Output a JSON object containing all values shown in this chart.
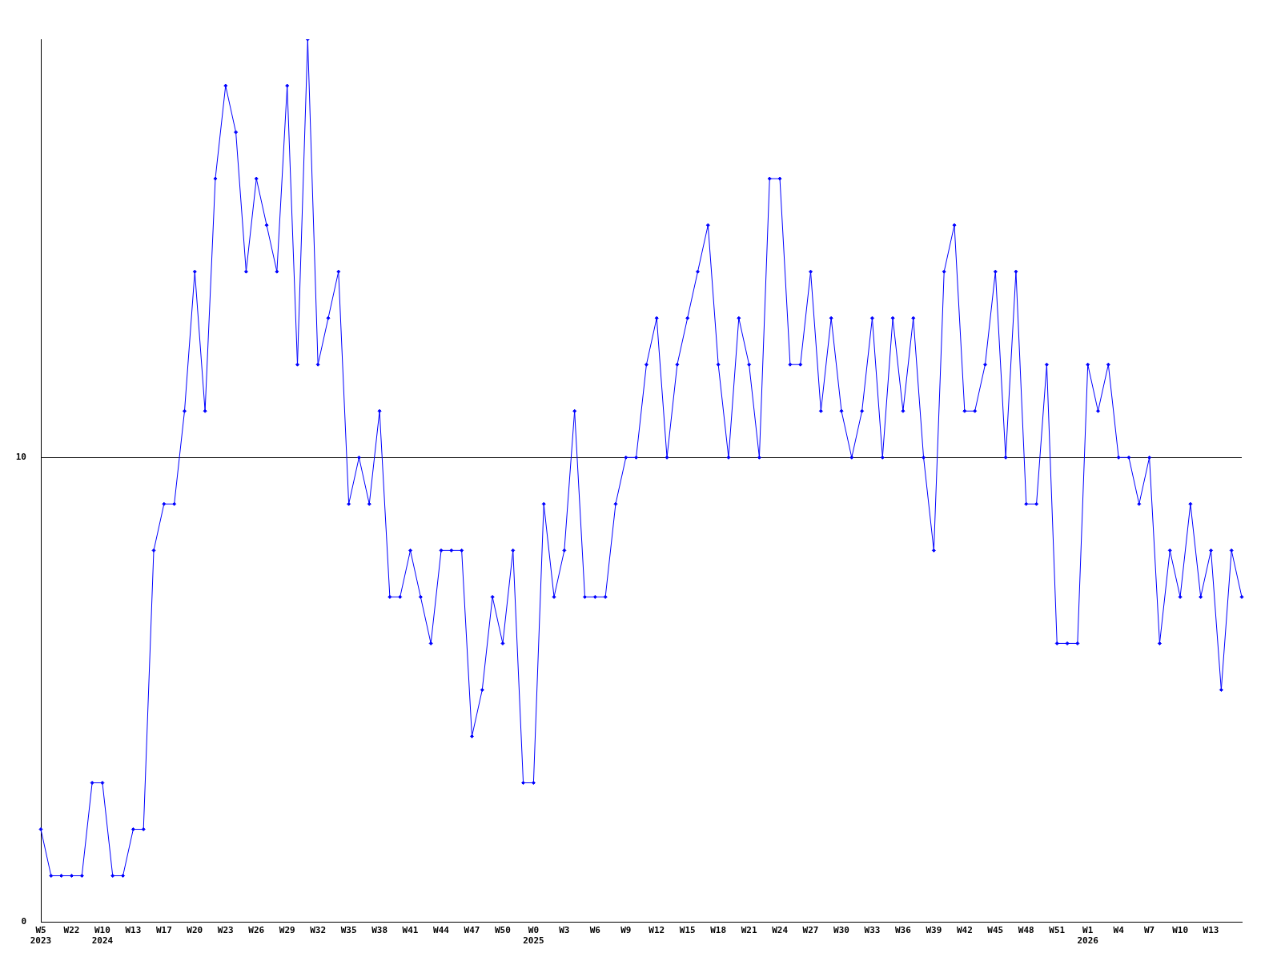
{
  "chart_data": {
    "type": "line",
    "categories": [
      "W5\n2023",
      null,
      null,
      "W22",
      null,
      null,
      "W10\n2024",
      null,
      null,
      "W13",
      null,
      null,
      "W17",
      null,
      null,
      "W20",
      null,
      null,
      "W23",
      null,
      null,
      "W26",
      null,
      null,
      "W29",
      null,
      null,
      "W32",
      null,
      null,
      "W35",
      null,
      null,
      "W38",
      null,
      null,
      "W41",
      null,
      null,
      "W44",
      null,
      null,
      "W47",
      null,
      null,
      "W50",
      null,
      null,
      "W0\n2025",
      null,
      null,
      "W3",
      null,
      null,
      "W6",
      null,
      null,
      "W9",
      null,
      null,
      "W12",
      null,
      null,
      "W15",
      null,
      null,
      "W18",
      null,
      null,
      "W21",
      null,
      null,
      "W24",
      null,
      null,
      "W27",
      null,
      null,
      "W30",
      null,
      null,
      "W33",
      null,
      null,
      "W36",
      null,
      null,
      "W39",
      null,
      null,
      "W42",
      null,
      null,
      "W45",
      null,
      null,
      "W48",
      null,
      null,
      "W51",
      null,
      null,
      "W1\n2026",
      null,
      null,
      "W4",
      null,
      null,
      "W7",
      null,
      null,
      "W10",
      null,
      null,
      "W13",
      null,
      null,
      null
    ],
    "series": [
      {
        "color": "#0000ff",
        "values": [
          2,
          1,
          1,
          1,
          1,
          3,
          3,
          1,
          1,
          2,
          2,
          8,
          9,
          9,
          11,
          14,
          11,
          16,
          18,
          17,
          14,
          16,
          15,
          14,
          18,
          12,
          19,
          12,
          13,
          14,
          9,
          10,
          9,
          11,
          7,
          7,
          8,
          7,
          6,
          8,
          8,
          8,
          4,
          5,
          7,
          6,
          8,
          3,
          3,
          9,
          7,
          8,
          11,
          7,
          7,
          7,
          9,
          10,
          10,
          12,
          13,
          10,
          12,
          13,
          14,
          15,
          12,
          10,
          13,
          12,
          10,
          16,
          16,
          12,
          12,
          14,
          11,
          13,
          11,
          10,
          11,
          13,
          10,
          13,
          11,
          13,
          10,
          8,
          14,
          15,
          11,
          11,
          12,
          14,
          10,
          14,
          9,
          9,
          12,
          6,
          6,
          6,
          12,
          11,
          12,
          10,
          10,
          9,
          10,
          6,
          8,
          7,
          9,
          7,
          8,
          5,
          8,
          7
        ]
      }
    ],
    "ylim": [
      0,
      19
    ],
    "yticks": [
      0,
      10
    ],
    "grid": "y",
    "marker": "diamond",
    "line_style": "solid",
    "legend": false
  }
}
